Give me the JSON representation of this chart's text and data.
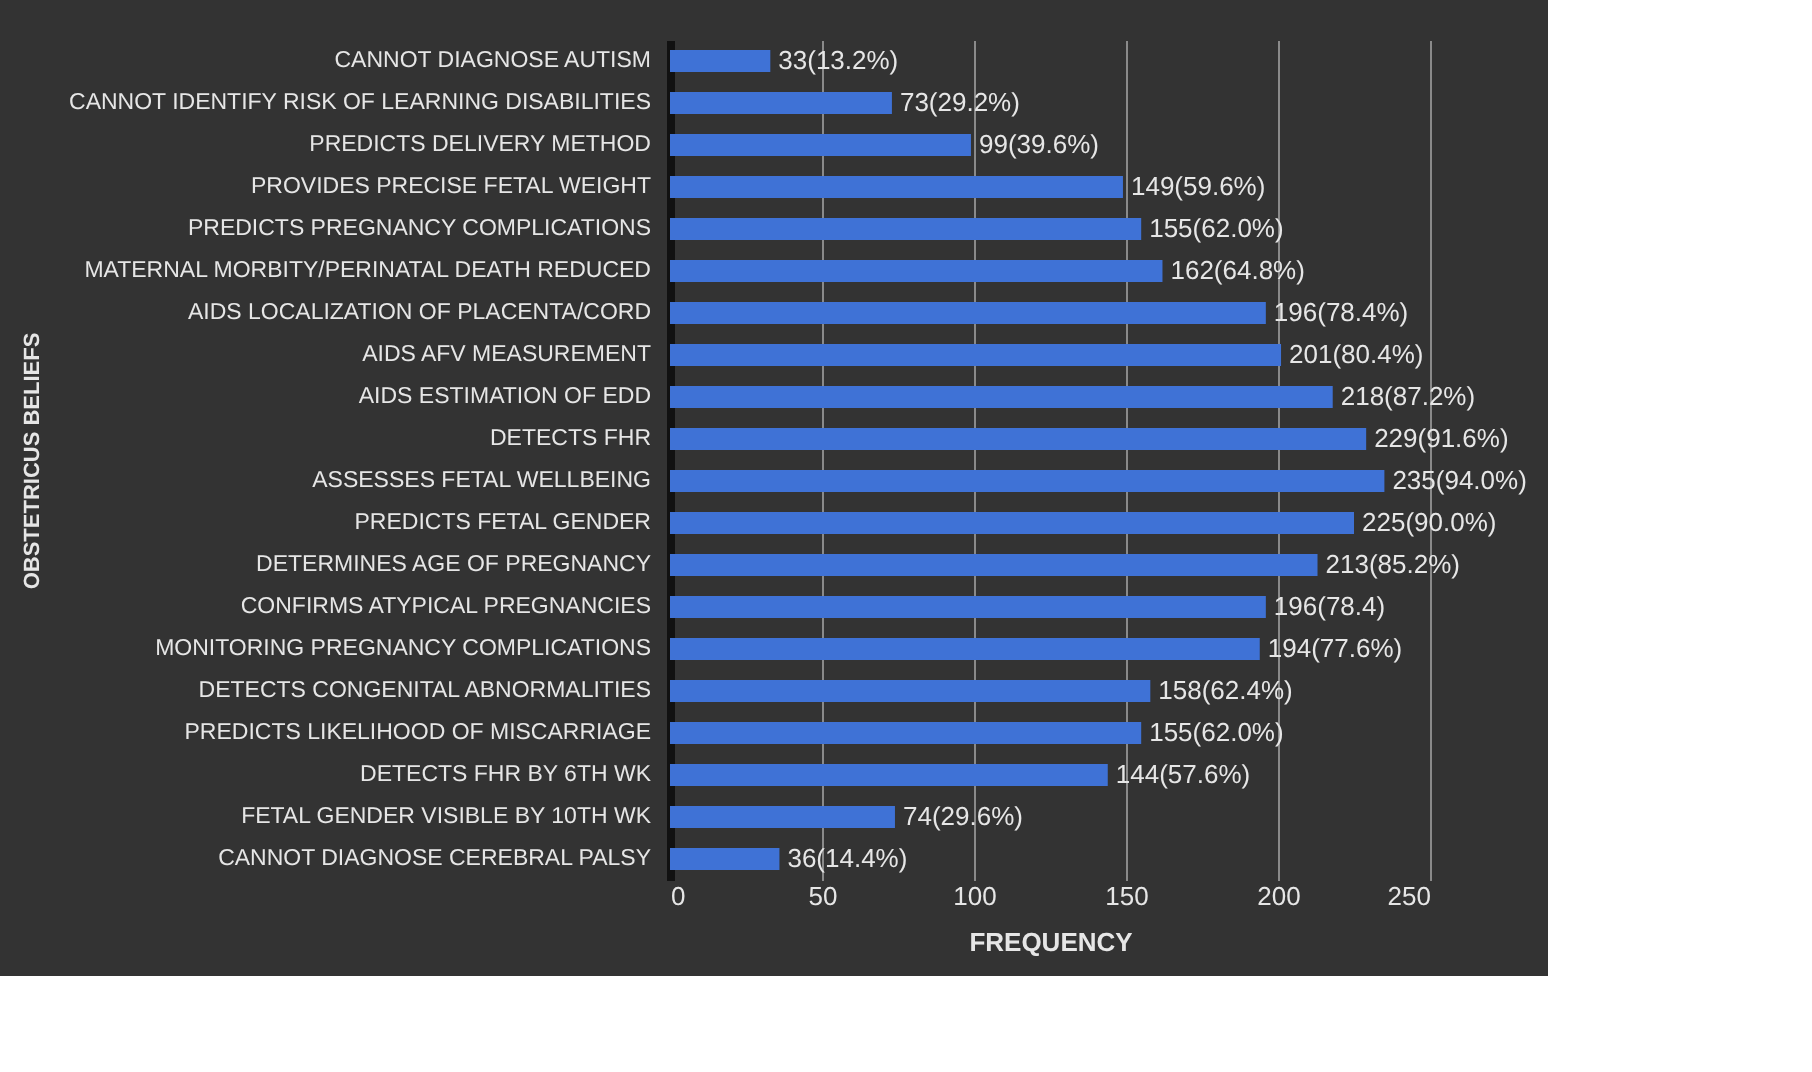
{
  "chart_data": {
    "type": "bar",
    "orientation": "horizontal",
    "ylabel": "OBSTETRICUS BELIEFS",
    "xlabel": "FREQUENCY",
    "categories": [
      "CANNOT DIAGNOSE AUTISM",
      "CANNOT IDENTIFY RISK OF LEARNING DISABILITIES",
      "PREDICTS DELIVERY METHOD",
      "PROVIDES PRECISE FETAL WEIGHT",
      "PREDICTS PREGNANCY COMPLICATIONS",
      "MATERNAL MORBITY/PERINATAL DEATH REDUCED",
      "AIDS LOCALIZATION OF PLACENTA/CORD",
      "AIDS AFV MEASUREMENT",
      "AIDS ESTIMATION OF EDD",
      "DETECTS FHR",
      "ASSESSES FETAL WELLBEING",
      "PREDICTS FETAL GENDER",
      "DETERMINES AGE OF PREGNANCY",
      "CONFIRMS ATYPICAL PREGNANCIES",
      "MONITORING PREGNANCY COMPLICATIONS",
      "DETECTS CONGENITAL ABNORMALITIES",
      "PREDICTS LIKELIHOOD OF MISCARRIAGE",
      "DETECTS FHR BY 6TH WK",
      "FETAL GENDER VISIBLE BY 10TH WK",
      "CANNOT DIAGNOSE CEREBRAL PALSY"
    ],
    "values": [
      33,
      73,
      99,
      149,
      155,
      162,
      196,
      201,
      218,
      229,
      235,
      225,
      213,
      196,
      194,
      158,
      155,
      144,
      74,
      36
    ],
    "value_labels": [
      "33(13.2%)",
      "73(29.2%)",
      "99(39.6%)",
      "149(59.6%)",
      "155(62.0%)",
      "162(64.8%)",
      "196(78.4%)",
      "201(80.4%)",
      "218(87.2%)",
      "229(91.6%)",
      "235(94.0%)",
      "225(90.0%)",
      "213(85.2%)",
      "196(78.4)",
      "194(77.6%)",
      "158(62.4%)",
      "155(62.0%)",
      "144(57.6%)",
      "74(29.6%)",
      "36(14.4%)"
    ],
    "color": "#3f72d6",
    "xlim": [
      0,
      250
    ],
    "xticks": [
      0,
      50,
      100,
      150,
      200,
      250
    ],
    "grid": "x"
  }
}
